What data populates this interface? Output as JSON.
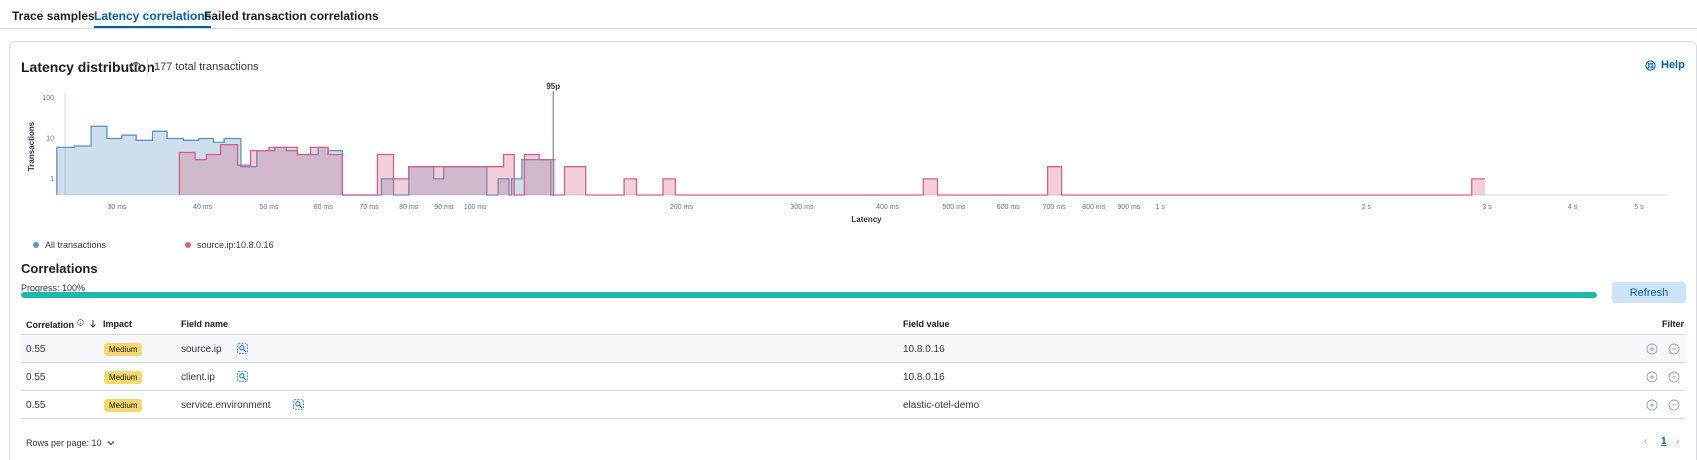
{
  "tabs": [
    {
      "label": "Trace samples"
    },
    {
      "label": "Latency correlations"
    },
    {
      "label": "Failed transaction correlations"
    }
  ],
  "latency": {
    "title": "Latency distribution",
    "total": "177 total transactions",
    "help_label": "Help"
  },
  "chart_data": {
    "type": "area",
    "title": "",
    "xlabel": "Latency",
    "ylabel": "Transactions",
    "x_scale": "log",
    "y_scale": "log",
    "ylim": [
      0.4,
      100
    ],
    "y_ticks": [
      {
        "v": 1,
        "label": "1"
      },
      {
        "v": 10,
        "label": "10"
      },
      {
        "v": 100,
        "label": "100"
      }
    ],
    "x_ticks": [
      {
        "v": 30,
        "label": "30 ms"
      },
      {
        "v": 40,
        "label": "40 ms"
      },
      {
        "v": 50,
        "label": "50 ms"
      },
      {
        "v": 60,
        "label": "60 ms"
      },
      {
        "v": 70,
        "label": "70 ms"
      },
      {
        "v": 80,
        "label": "80 ms"
      },
      {
        "v": 90,
        "label": "90 ms"
      },
      {
        "v": 100,
        "label": "100 ms"
      },
      {
        "v": 200,
        "label": "200 ms"
      },
      {
        "v": 300,
        "label": "300 ms"
      },
      {
        "v": 400,
        "label": "400 ms"
      },
      {
        "v": 500,
        "label": "500 ms"
      },
      {
        "v": 600,
        "label": "600 ms"
      },
      {
        "v": 700,
        "label": "700 ms"
      },
      {
        "v": 800,
        "label": "800 ms"
      },
      {
        "v": 900,
        "label": "900 ms"
      },
      {
        "v": 1000,
        "label": "1 s"
      },
      {
        "v": 2000,
        "label": "2 s"
      },
      {
        "v": 3000,
        "label": "3 s"
      },
      {
        "v": 4000,
        "label": "4 s"
      },
      {
        "v": 5000,
        "label": "5 s"
      }
    ],
    "annotation": {
      "label": "95p",
      "x": 130
    },
    "legend_position": "bottom-left",
    "series": [
      {
        "name": "All transactions",
        "color": "#6092c0",
        "points": [
          [
            24.5,
            6
          ],
          [
            26,
            6.5
          ],
          [
            27.5,
            20
          ],
          [
            29,
            10
          ],
          [
            30.5,
            12
          ],
          [
            32,
            9
          ],
          [
            33.8,
            15
          ],
          [
            35.5,
            10
          ],
          [
            37.5,
            9
          ],
          [
            39.5,
            10
          ],
          [
            41.5,
            8
          ],
          [
            43,
            10
          ],
          [
            45.5,
            2
          ],
          [
            48,
            5
          ],
          [
            51,
            6
          ],
          [
            53,
            5
          ],
          [
            55,
            4
          ],
          [
            59,
            6
          ],
          [
            61,
            5
          ],
          [
            64,
            0
          ],
          [
            69,
            0
          ],
          [
            73,
            1
          ],
          [
            76,
            0
          ],
          [
            80,
            2
          ],
          [
            84,
            2
          ],
          [
            87,
            1
          ],
          [
            90,
            2
          ],
          [
            95,
            2
          ],
          [
            100,
            2
          ],
          [
            104,
            0
          ],
          [
            108,
            1
          ],
          [
            112,
            0.4
          ],
          [
            113,
            1
          ],
          [
            117,
            3
          ],
          [
            124,
            3
          ],
          [
            131,
            0.4
          ]
        ]
      },
      {
        "name": "source.ip:10.8.0.16",
        "color": "#d36086",
        "points": [
          [
            37,
            0.4
          ],
          [
            37,
            4.5
          ],
          [
            39,
            3
          ],
          [
            40.5,
            4
          ],
          [
            42.5,
            7
          ],
          [
            45,
            2.2
          ],
          [
            47,
            5
          ],
          [
            50,
            6
          ],
          [
            55,
            4
          ],
          [
            57.5,
            6
          ],
          [
            61,
            4
          ],
          [
            64,
            0.4
          ],
          [
            72,
            0.4
          ],
          [
            72,
            4
          ],
          [
            76,
            1
          ],
          [
            80,
            2
          ],
          [
            90,
            2
          ],
          [
            104,
            2
          ],
          [
            110,
            4
          ],
          [
            114,
            0.4
          ],
          [
            118,
            4
          ],
          [
            124,
            3
          ],
          [
            129,
            0.4
          ],
          [
            135,
            2
          ],
          [
            145,
            0.4
          ],
          [
            165,
            1
          ],
          [
            172,
            0.4
          ],
          [
            188,
            1
          ],
          [
            196,
            0.4
          ],
          [
            451,
            1
          ],
          [
            473,
            0.4
          ],
          [
            685,
            2
          ],
          [
            718,
            0.4
          ],
          [
            2850,
            1
          ],
          [
            2980,
            0.4
          ]
        ]
      }
    ]
  },
  "correlations": {
    "title": "Correlations",
    "progress_label": "Progress: 100%",
    "progress": 1.0,
    "refresh_label": "Refresh",
    "columns": {
      "correlation": "Correlation",
      "impact": "Impact",
      "field_name": "Field name",
      "field_value": "Field value",
      "filter": "Filter"
    },
    "rows": [
      {
        "correlation": "0.55",
        "impact": "Medium",
        "field_name": "source.ip",
        "field_value": "10.8.0.16"
      },
      {
        "correlation": "0.55",
        "impact": "Medium",
        "field_name": "client.ip",
        "field_value": "10.8.0.16"
      },
      {
        "correlation": "0.55",
        "impact": "Medium",
        "field_name": "service.environment",
        "field_value": "elastic-otel-demo"
      }
    ],
    "rows_per_page": "Rows per page: 10",
    "current_page": "1"
  },
  "colors": {
    "accent": "#0061a6",
    "progress": "#1cb8a8",
    "badge_medium": "#f1d86f"
  }
}
